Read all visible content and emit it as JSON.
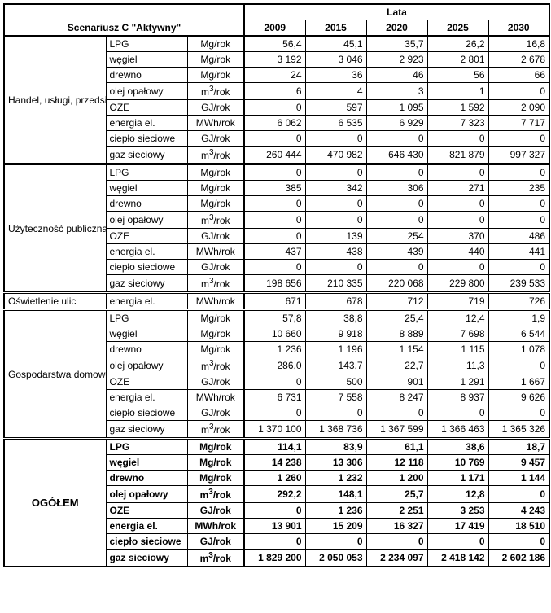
{
  "header": {
    "lata": "Lata",
    "scenario": "Scenariusz C \"Aktywny\"",
    "years": [
      "2009",
      "2015",
      "2020",
      "2025",
      "2030"
    ]
  },
  "fuels": [
    "LPG",
    "węgiel",
    "drewno",
    "olej opałowy",
    "OZE",
    "energia el.",
    "ciepło sieciowe",
    "gaz sieciowy"
  ],
  "units": [
    "Mg/rok",
    "Mg/rok",
    "Mg/rok",
    "m³/rok",
    "GJ/rok",
    "MWh/rok",
    "GJ/rok",
    "m³/rok"
  ],
  "unit_html": [
    "Mg/rok",
    "Mg/rok",
    "Mg/rok",
    "m<sup>3</sup>/rok",
    "GJ/rok",
    "MWh/rok",
    "GJ/rok",
    "m<sup>3</sup>/rok"
  ],
  "sections": [
    {
      "name": "Handel, usługi, przedsiebiorstwa",
      "rows": [
        [
          "56,4",
          "45,1",
          "35,7",
          "26,2",
          "16,8"
        ],
        [
          "3 192",
          "3 046",
          "2 923",
          "2 801",
          "2 678"
        ],
        [
          "24",
          "36",
          "46",
          "56",
          "66"
        ],
        [
          "6",
          "4",
          "3",
          "1",
          "0"
        ],
        [
          "0",
          "597",
          "1 095",
          "1 592",
          "2 090"
        ],
        [
          "6 062",
          "6 535",
          "6 929",
          "7 323",
          "7 717"
        ],
        [
          "0",
          "0",
          "0",
          "0",
          "0"
        ],
        [
          "260 444",
          "470 982",
          "646 430",
          "821 879",
          "997 327"
        ]
      ]
    },
    {
      "name": "Użyteczność publiczna",
      "rows": [
        [
          "0",
          "0",
          "0",
          "0",
          "0"
        ],
        [
          "385",
          "342",
          "306",
          "271",
          "235"
        ],
        [
          "0",
          "0",
          "0",
          "0",
          "0"
        ],
        [
          "0",
          "0",
          "0",
          "0",
          "0"
        ],
        [
          "0",
          "139",
          "254",
          "370",
          "486"
        ],
        [
          "437",
          "438",
          "439",
          "440",
          "441"
        ],
        [
          "0",
          "0",
          "0",
          "0",
          "0"
        ],
        [
          "198 656",
          "210 335",
          "220 068",
          "229 800",
          "239 533"
        ]
      ]
    }
  ],
  "oswietlenie": {
    "name": "Oświetlenie ulic",
    "fuel": "energia el.",
    "unit": "MWh/rok",
    "row": [
      "671",
      "678",
      "712",
      "719",
      "726"
    ]
  },
  "gospodarstwa": {
    "name": "Gospodarstwa domowe",
    "rows": [
      [
        "57,8",
        "38,8",
        "25,4",
        "12,4",
        "1,9"
      ],
      [
        "10 660",
        "9 918",
        "8 889",
        "7 698",
        "6 544"
      ],
      [
        "1 236",
        "1 196",
        "1 154",
        "1 115",
        "1 078"
      ],
      [
        "286,0",
        "143,7",
        "22,7",
        "11,3",
        "0"
      ],
      [
        "0",
        "500",
        "901",
        "1 291",
        "1 667"
      ],
      [
        "6 731",
        "7 558",
        "8 247",
        "8 937",
        "9 626"
      ],
      [
        "0",
        "0",
        "0",
        "0",
        "0"
      ],
      [
        "1 370 100",
        "1 368 736",
        "1 367 599",
        "1 366 463",
        "1 365 326"
      ]
    ]
  },
  "ogolem": {
    "name": "OGÓŁEM",
    "rows": [
      [
        "114,1",
        "83,9",
        "61,1",
        "38,6",
        "18,7"
      ],
      [
        "14 238",
        "13 306",
        "12 118",
        "10 769",
        "9 457"
      ],
      [
        "1 260",
        "1 232",
        "1 200",
        "1 171",
        "1 144"
      ],
      [
        "292,2",
        "148,1",
        "25,7",
        "12,8",
        "0"
      ],
      [
        "0",
        "1 236",
        "2 251",
        "3 253",
        "4 243"
      ],
      [
        "13 901",
        "15 209",
        "16 327",
        "17 419",
        "18 510"
      ],
      [
        "0",
        "0",
        "0",
        "0",
        "0"
      ],
      [
        "1 829 200",
        "2 050 053",
        "2 234 097",
        "2 418 142",
        "2 602 186"
      ]
    ]
  }
}
